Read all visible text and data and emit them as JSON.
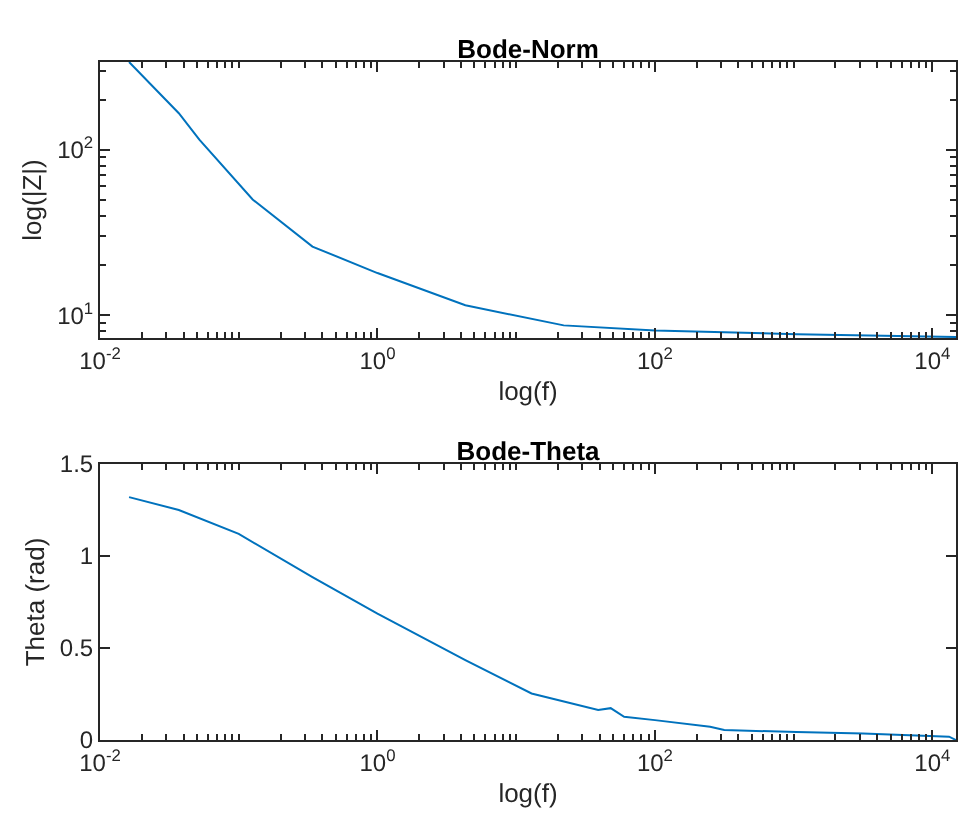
{
  "chart_data": [
    {
      "type": "line",
      "title": "Bode-Norm",
      "xlabel": "log(f)",
      "ylabel": "log(|Z|)",
      "log": "xy",
      "x": [
        0.0162,
        0.037,
        0.052,
        0.126,
        0.34,
        1,
        4.3,
        22,
        100,
        1050,
        14800
      ],
      "series": [
        {
          "color": "#0072bd",
          "values": [
            338,
            166,
            115,
            50,
            26,
            18,
            11.5,
            8.7,
            8.1,
            7.7,
            7.4
          ]
        }
      ],
      "xlim": [
        0.01,
        14800
      ],
      "xticks": [
        {
          "value": 0.01,
          "label": "10$^{-2}$"
        },
        {
          "value": 1,
          "label": "10$^{0}$"
        },
        {
          "value": 100,
          "label": "10$^{2}$"
        },
        {
          "value": 10000,
          "label": "10$^{4}$"
        }
      ],
      "ylim": [
        7.3,
        338
      ],
      "yticks": [
        {
          "value": 10,
          "label": "10$^{1}$"
        },
        {
          "value": 100,
          "label": "10$^{2}$"
        }
      ]
    },
    {
      "type": "line",
      "title": "Bode-Theta",
      "xlabel": "log(f)",
      "ylabel": "Theta (rad)",
      "log": "x",
      "x": [
        0.0162,
        0.037,
        0.1,
        0.34,
        1,
        4.3,
        12.9,
        39,
        48,
        60,
        100,
        250,
        316,
        1050,
        3160,
        9550,
        13200,
        14800
      ],
      "series": [
        {
          "color": "#0072bd",
          "values": [
            1.32,
            1.25,
            1.12,
            0.885,
            0.687,
            0.434,
            0.253,
            0.163,
            0.173,
            0.126,
            0.108,
            0.072,
            0.054,
            0.043,
            0.036,
            0.022,
            0.018,
            0
          ]
        }
      ],
      "xlim": [
        0.01,
        14800
      ],
      "xticks": [
        {
          "value": 0.01,
          "label": "10$^{-2}$"
        },
        {
          "value": 1,
          "label": "10$^{0}$"
        },
        {
          "value": 100,
          "label": "10$^{2}$"
        },
        {
          "value": 10000,
          "label": "10$^{4}$"
        }
      ],
      "ylim": [
        0,
        1.5
      ],
      "yticks": [
        0,
        {
          "value": 0.5,
          "label": "0.5"
        },
        1,
        {
          "value": 1.5,
          "label": "1.5"
        }
      ]
    }
  ]
}
